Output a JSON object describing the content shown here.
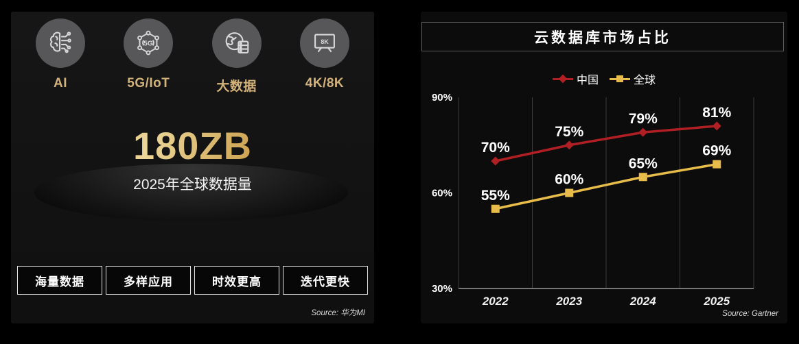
{
  "left_panel": {
    "tech_items": [
      {
        "label": "AI",
        "icon": "ai-brain-circuit-icon"
      },
      {
        "label": "5G/IoT",
        "icon": "5g-hexagon-network-icon",
        "icon_text": "5G"
      },
      {
        "label": "大数据",
        "icon": "globe-database-icon"
      },
      {
        "label": "4K/8K",
        "icon": "tv-8k-icon",
        "icon_text": "8K"
      }
    ],
    "headline": "180ZB",
    "subheadline": "2025年全球数据量",
    "feature_boxes": [
      "海量数据",
      "多样应用",
      "时效更高",
      "迭代更快"
    ],
    "source": "Source: 华为MI"
  },
  "right_panel": {
    "source": "Source: Gartner",
    "chart_data": {
      "type": "line",
      "title": "云数据库市场占比",
      "categories": [
        "2022",
        "2023",
        "2024",
        "2025"
      ],
      "series": [
        {
          "name": "中国",
          "values": [
            70,
            75,
            79,
            81
          ],
          "color": "#b01f24",
          "marker": "diamond"
        },
        {
          "name": "全球",
          "values": [
            55,
            60,
            65,
            69
          ],
          "color": "#e8bc4a",
          "marker": "square"
        }
      ],
      "ylim": [
        30,
        90
      ],
      "yticks": [
        30,
        60,
        90
      ],
      "ytick_labels": [
        "30%",
        "60%",
        "90%"
      ],
      "data_label_suffix": "%",
      "legend_position": "top",
      "grid": "vertical-only"
    }
  },
  "colors": {
    "background": "#000000",
    "panel_left_bg": "#141414",
    "panel_right_bg": "#0c0c0c",
    "accent_gold_text": "#d3b379",
    "headline_gold": "#d8b671",
    "china_red": "#b01f24",
    "global_gold": "#e8bc4a",
    "icon_circle_gray": "#57575a",
    "gridline_gray": "#3d3d3d"
  }
}
